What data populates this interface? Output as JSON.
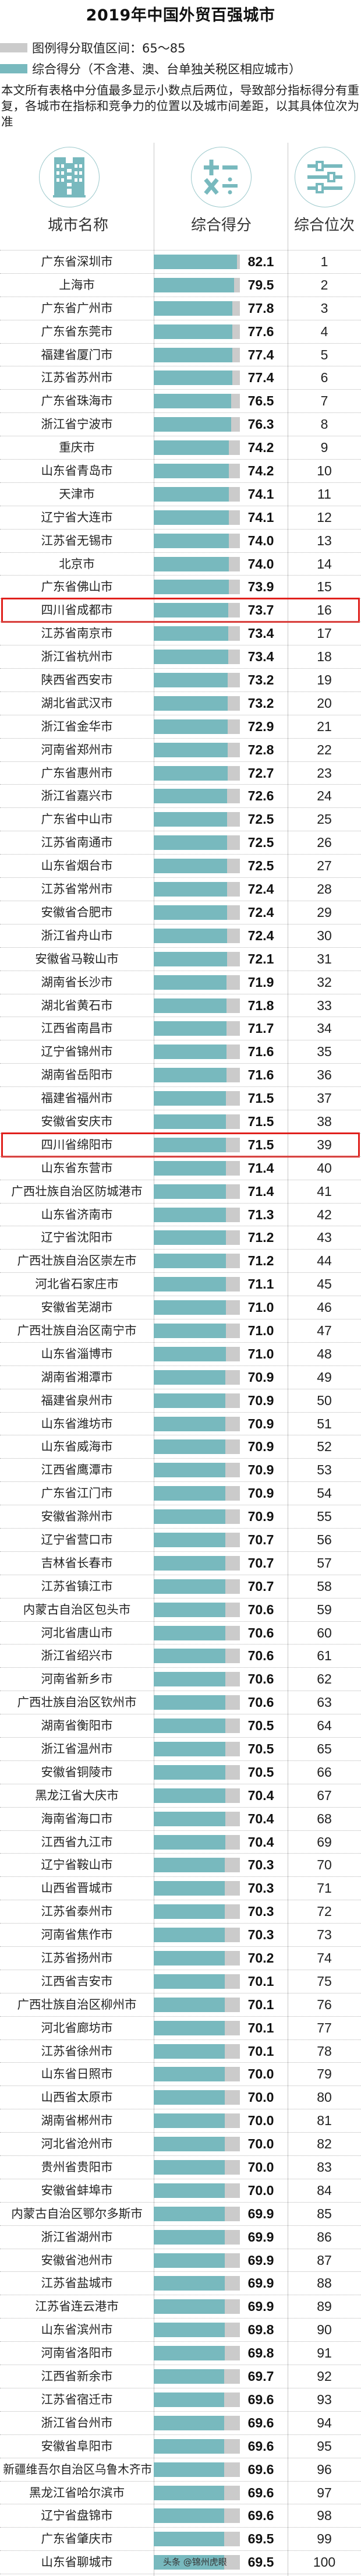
{
  "title": "2019年中国外贸百强城市",
  "legend": [
    {
      "label": "图例得分取值区间：65～85",
      "color": "#cbcbcb"
    },
    {
      "label": "综合得分（不含港、澳、台单独关税区相应城市）",
      "color": "#78b9be"
    }
  ],
  "note": "本文所有表格中分值最多显示小数点后两位，导致部分指标得分有重复，各城市在指标和竞争力的位置以及城市间差距，以其具体位次为准",
  "columns": [
    {
      "label": "城市名称",
      "icon": "building-icon"
    },
    {
      "label": "综合得分",
      "icon": "math-operators-icon"
    },
    {
      "label": "综合位次",
      "icon": "sliders-icon"
    }
  ],
  "watermark": "头条 @锦州虎眼",
  "chart_data": {
    "type": "bar",
    "title": "2019年中国外贸百强城市",
    "orientation": "horizontal",
    "xlim": [
      0,
      85
    ],
    "legend_range_label": "65～85",
    "colors": {
      "score": "#78b9be",
      "range": "#cbcbcb",
      "highlight": "#e0201c"
    },
    "rows": [
      {
        "city": "广东省深圳市",
        "score": "82.1",
        "rank": "1"
      },
      {
        "city": "上海市",
        "score": "79.5",
        "rank": "2"
      },
      {
        "city": "广东省广州市",
        "score": "77.8",
        "rank": "3"
      },
      {
        "city": "广东省东莞市",
        "score": "77.6",
        "rank": "4"
      },
      {
        "city": "福建省厦门市",
        "score": "77.4",
        "rank": "5"
      },
      {
        "city": "江苏省苏州市",
        "score": "77.4",
        "rank": "6"
      },
      {
        "city": "广东省珠海市",
        "score": "76.5",
        "rank": "7"
      },
      {
        "city": "浙江省宁波市",
        "score": "76.3",
        "rank": "8"
      },
      {
        "city": "重庆市",
        "score": "74.2",
        "rank": "9"
      },
      {
        "city": "山东省青岛市",
        "score": "74.2",
        "rank": "10"
      },
      {
        "city": "天津市",
        "score": "74.1",
        "rank": "11"
      },
      {
        "city": "辽宁省大连市",
        "score": "74.1",
        "rank": "12"
      },
      {
        "city": "江苏省无锡市",
        "score": "74.0",
        "rank": "13"
      },
      {
        "city": "北京市",
        "score": "74.0",
        "rank": "14"
      },
      {
        "city": "广东省佛山市",
        "score": "73.9",
        "rank": "15"
      },
      {
        "city": "四川省成都市",
        "score": "73.7",
        "rank": "16",
        "highlighted": true
      },
      {
        "city": "江苏省南京市",
        "score": "73.4",
        "rank": "17"
      },
      {
        "city": "浙江省杭州市",
        "score": "73.4",
        "rank": "18"
      },
      {
        "city": "陕西省西安市",
        "score": "73.2",
        "rank": "19"
      },
      {
        "city": "湖北省武汉市",
        "score": "73.2",
        "rank": "20"
      },
      {
        "city": "浙江省金华市",
        "score": "72.9",
        "rank": "21"
      },
      {
        "city": "河南省郑州市",
        "score": "72.8",
        "rank": "22"
      },
      {
        "city": "广东省惠州市",
        "score": "72.7",
        "rank": "23"
      },
      {
        "city": "浙江省嘉兴市",
        "score": "72.6",
        "rank": "24"
      },
      {
        "city": "广东省中山市",
        "score": "72.5",
        "rank": "25"
      },
      {
        "city": "江苏省南通市",
        "score": "72.5",
        "rank": "26"
      },
      {
        "city": "山东省烟台市",
        "score": "72.5",
        "rank": "27"
      },
      {
        "city": "江苏省常州市",
        "score": "72.4",
        "rank": "28"
      },
      {
        "city": "安徽省合肥市",
        "score": "72.4",
        "rank": "29"
      },
      {
        "city": "浙江省舟山市",
        "score": "72.4",
        "rank": "30"
      },
      {
        "city": "安徽省马鞍山市",
        "score": "72.1",
        "rank": "31"
      },
      {
        "city": "湖南省长沙市",
        "score": "71.9",
        "rank": "32"
      },
      {
        "city": "湖北省黄石市",
        "score": "71.8",
        "rank": "33"
      },
      {
        "city": "江西省南昌市",
        "score": "71.7",
        "rank": "34"
      },
      {
        "city": "辽宁省锦州市",
        "score": "71.6",
        "rank": "35"
      },
      {
        "city": "湖南省岳阳市",
        "score": "71.6",
        "rank": "36"
      },
      {
        "city": "福建省福州市",
        "score": "71.5",
        "rank": "37"
      },
      {
        "city": "安徽省安庆市",
        "score": "71.5",
        "rank": "38"
      },
      {
        "city": "四川省绵阳市",
        "score": "71.5",
        "rank": "39",
        "highlighted": true
      },
      {
        "city": "山东省东营市",
        "score": "71.4",
        "rank": "40"
      },
      {
        "city": "广西壮族自治区防城港市",
        "score": "71.4",
        "rank": "41"
      },
      {
        "city": "山东省济南市",
        "score": "71.3",
        "rank": "42"
      },
      {
        "city": "辽宁省沈阳市",
        "score": "71.2",
        "rank": "43"
      },
      {
        "city": "广西壮族自治区崇左市",
        "score": "71.2",
        "rank": "44"
      },
      {
        "city": "河北省石家庄市",
        "score": "71.1",
        "rank": "45"
      },
      {
        "city": "安徽省芜湖市",
        "score": "71.0",
        "rank": "46"
      },
      {
        "city": "广西壮族自治区南宁市",
        "score": "71.0",
        "rank": "47"
      },
      {
        "city": "山东省淄博市",
        "score": "71.0",
        "rank": "48"
      },
      {
        "city": "湖南省湘潭市",
        "score": "70.9",
        "rank": "49"
      },
      {
        "city": "福建省泉州市",
        "score": "70.9",
        "rank": "50"
      },
      {
        "city": "山东省潍坊市",
        "score": "70.9",
        "rank": "51"
      },
      {
        "city": "山东省威海市",
        "score": "70.9",
        "rank": "52"
      },
      {
        "city": "江西省鹰潭市",
        "score": "70.9",
        "rank": "53"
      },
      {
        "city": "广东省江门市",
        "score": "70.9",
        "rank": "54"
      },
      {
        "city": "安徽省滁州市",
        "score": "70.9",
        "rank": "55"
      },
      {
        "city": "辽宁省营口市",
        "score": "70.7",
        "rank": "56"
      },
      {
        "city": "吉林省长春市",
        "score": "70.7",
        "rank": "57"
      },
      {
        "city": "江苏省镇江市",
        "score": "70.7",
        "rank": "58"
      },
      {
        "city": "内蒙古自治区包头市",
        "score": "70.6",
        "rank": "59"
      },
      {
        "city": "河北省唐山市",
        "score": "70.6",
        "rank": "60"
      },
      {
        "city": "浙江省绍兴市",
        "score": "70.6",
        "rank": "61"
      },
      {
        "city": "河南省新乡市",
        "score": "70.6",
        "rank": "62"
      },
      {
        "city": "广西壮族自治区钦州市",
        "score": "70.6",
        "rank": "63"
      },
      {
        "city": "湖南省衡阳市",
        "score": "70.5",
        "rank": "64"
      },
      {
        "city": "浙江省温州市",
        "score": "70.5",
        "rank": "65"
      },
      {
        "city": "安徽省铜陵市",
        "score": "70.5",
        "rank": "66"
      },
      {
        "city": "黑龙江省大庆市",
        "score": "70.4",
        "rank": "67"
      },
      {
        "city": "海南省海口市",
        "score": "70.4",
        "rank": "68"
      },
      {
        "city": "江西省九江市",
        "score": "70.4",
        "rank": "69"
      },
      {
        "city": "辽宁省鞍山市",
        "score": "70.3",
        "rank": "70"
      },
      {
        "city": "山西省晋城市",
        "score": "70.3",
        "rank": "71"
      },
      {
        "city": "江苏省泰州市",
        "score": "70.3",
        "rank": "72"
      },
      {
        "city": "河南省焦作市",
        "score": "70.3",
        "rank": "73"
      },
      {
        "city": "江苏省扬州市",
        "score": "70.2",
        "rank": "74"
      },
      {
        "city": "江西省吉安市",
        "score": "70.1",
        "rank": "75"
      },
      {
        "city": "广西壮族自治区柳州市",
        "score": "70.1",
        "rank": "76"
      },
      {
        "city": "河北省廊坊市",
        "score": "70.1",
        "rank": "77"
      },
      {
        "city": "江苏省徐州市",
        "score": "70.1",
        "rank": "78"
      },
      {
        "city": "山东省日照市",
        "score": "70.0",
        "rank": "79"
      },
      {
        "city": "山西省太原市",
        "score": "70.0",
        "rank": "80"
      },
      {
        "city": "湖南省郴州市",
        "score": "70.0",
        "rank": "81"
      },
      {
        "city": "河北省沧州市",
        "score": "70.0",
        "rank": "82"
      },
      {
        "city": "贵州省贵阳市",
        "score": "70.0",
        "rank": "83"
      },
      {
        "city": "安徽省蚌埠市",
        "score": "70.0",
        "rank": "84"
      },
      {
        "city": "内蒙古自治区鄂尔多斯市",
        "score": "69.9",
        "rank": "85"
      },
      {
        "city": "浙江省湖州市",
        "score": "69.9",
        "rank": "86"
      },
      {
        "city": "安徽省池州市",
        "score": "69.9",
        "rank": "87"
      },
      {
        "city": "江苏省盐城市",
        "score": "69.9",
        "rank": "88"
      },
      {
        "city": "江苏省连云港市",
        "score": "69.9",
        "rank": "89"
      },
      {
        "city": "山东省滨州市",
        "score": "69.8",
        "rank": "90"
      },
      {
        "city": "河南省洛阳市",
        "score": "69.8",
        "rank": "91"
      },
      {
        "city": "江西省新余市",
        "score": "69.7",
        "rank": "92"
      },
      {
        "city": "江苏省宿迁市",
        "score": "69.6",
        "rank": "93"
      },
      {
        "city": "浙江省台州市",
        "score": "69.6",
        "rank": "94"
      },
      {
        "city": "安徽省阜阳市",
        "score": "69.6",
        "rank": "95"
      },
      {
        "city": "新疆维吾尔自治区乌鲁木齐市",
        "score": "69.6",
        "rank": "96"
      },
      {
        "city": "黑龙江省哈尔滨市",
        "score": "69.6",
        "rank": "97"
      },
      {
        "city": "辽宁省盘锦市",
        "score": "69.6",
        "rank": "98"
      },
      {
        "city": "广东省肇庆市",
        "score": "69.5",
        "rank": "99"
      },
      {
        "city": "山东省聊城市",
        "score": "69.5",
        "rank": "100"
      }
    ]
  }
}
